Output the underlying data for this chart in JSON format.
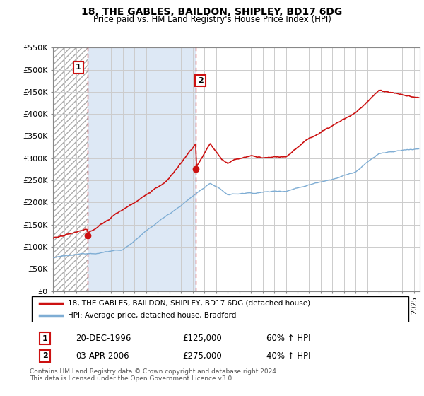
{
  "title": "18, THE GABLES, BAILDON, SHIPLEY, BD17 6DG",
  "subtitle": "Price paid vs. HM Land Registry's House Price Index (HPI)",
  "ylim": [
    0,
    550000
  ],
  "yticks": [
    0,
    50000,
    100000,
    150000,
    200000,
    250000,
    300000,
    350000,
    400000,
    450000,
    500000,
    550000
  ],
  "ytick_labels": [
    "£0",
    "£50K",
    "£100K",
    "£150K",
    "£200K",
    "£250K",
    "£300K",
    "£350K",
    "£400K",
    "£450K",
    "£500K",
    "£550K"
  ],
  "hpi_color": "#7eadd4",
  "price_color": "#cc1111",
  "marker_color": "#cc1111",
  "grid_color": "#cccccc",
  "annotation_box_color": "#cc1111",
  "transaction1_date": "20-DEC-1996",
  "transaction1_price": 125000,
  "transaction1_hpi": "60% ↑ HPI",
  "transaction1_label": "1",
  "transaction1_year": 1996.97,
  "transaction2_date": "03-APR-2006",
  "transaction2_price": 275000,
  "transaction2_hpi": "40% ↑ HPI",
  "transaction2_label": "2",
  "transaction2_year": 2006.26,
  "xmin": 1994.0,
  "xmax": 2025.5,
  "legend_line1": "18, THE GABLES, BAILDON, SHIPLEY, BD17 6DG (detached house)",
  "legend_line2": "HPI: Average price, detached house, Bradford",
  "footer": "Contains HM Land Registry data © Crown copyright and database right 2024.\nThis data is licensed under the Open Government Licence v3.0.",
  "hatch_color": "#bbbbbb",
  "blue_fill_color": "#dde8f5"
}
